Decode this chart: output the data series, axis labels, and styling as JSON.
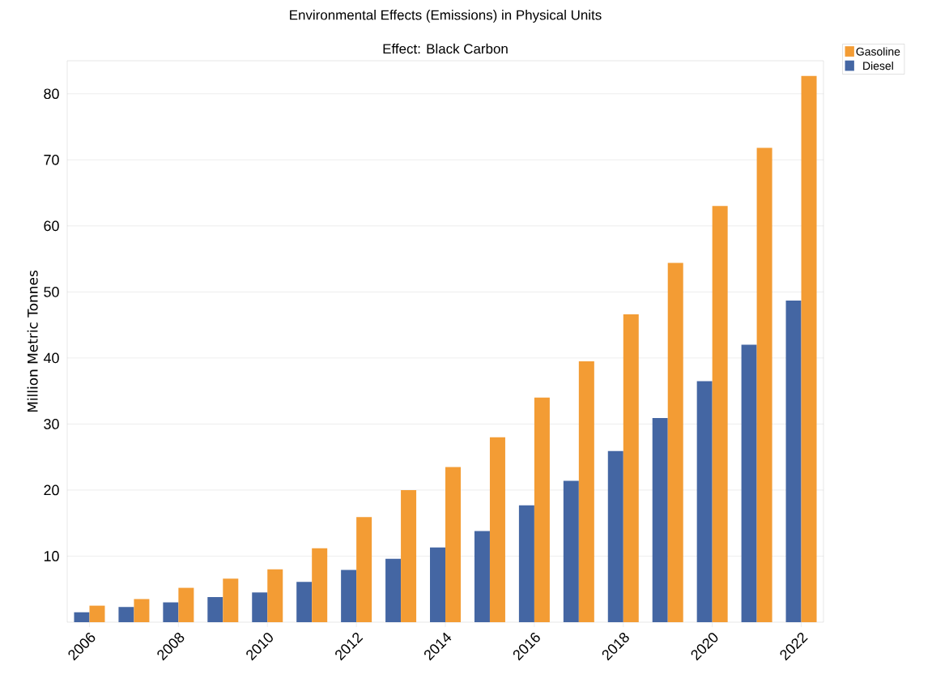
{
  "chart_data": {
    "type": "bar",
    "title": "Environmental Effects (Emissions) in Physical Units",
    "subtitle": "Effect: Black Carbon",
    "ylabel": "Million Metric Tonnes",
    "categories": [
      "2006",
      null,
      "2008",
      null,
      "2010",
      null,
      "2012",
      null,
      "2014",
      null,
      "2016",
      null,
      "2018",
      null,
      "2020",
      null,
      "2022"
    ],
    "series": [
      {
        "name": "Diesel",
        "color": "#4466a3",
        "values": [
          1.5,
          2.3,
          3.0,
          3.8,
          4.5,
          6.1,
          7.9,
          9.6,
          11.3,
          13.8,
          17.7,
          21.4,
          25.9,
          30.9,
          36.5,
          42.0,
          48.7
        ]
      },
      {
        "name": "Gasoline",
        "color": "#f39c34",
        "values": [
          2.5,
          3.5,
          5.2,
          6.6,
          8.0,
          11.2,
          15.9,
          20.0,
          23.5,
          28.0,
          34.0,
          39.5,
          46.6,
          54.4,
          63.0,
          71.8,
          82.7
        ]
      }
    ],
    "ylim": [
      0,
      85
    ],
    "yticks": [
      10,
      20,
      30,
      40,
      50,
      60,
      70,
      80
    ],
    "grid": "y",
    "legend": "top right"
  }
}
